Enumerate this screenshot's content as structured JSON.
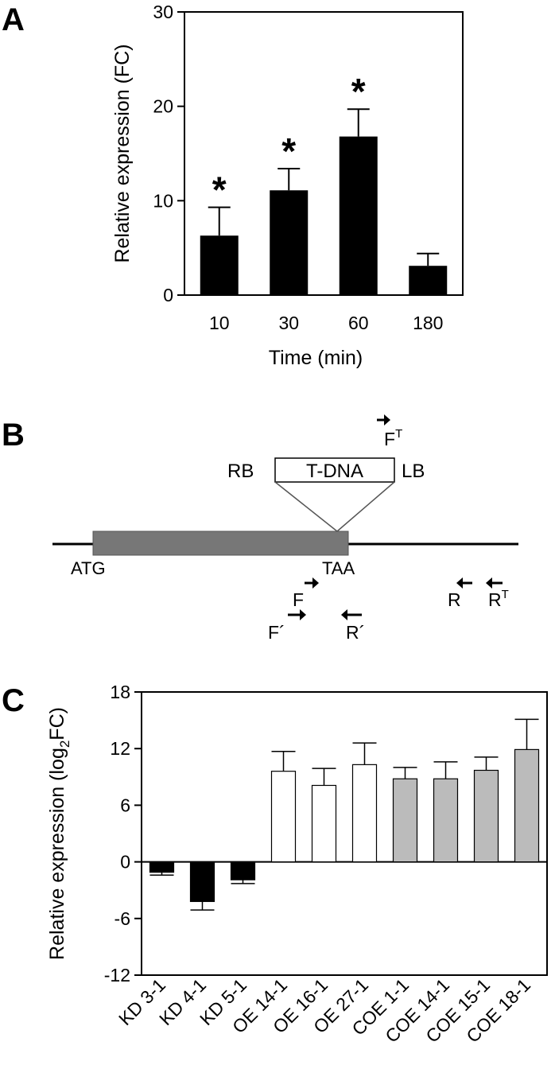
{
  "panels": {
    "a": {
      "letter": "A",
      "chart_data": {
        "type": "bar",
        "title": "",
        "categories": [
          "10",
          "30",
          "60",
          "180"
        ],
        "values": [
          6.3,
          11.1,
          16.8,
          3.1
        ],
        "errors": [
          3.0,
          2.3,
          2.9,
          1.3
        ],
        "significant": [
          true,
          true,
          true,
          false
        ],
        "significance_mark": "*",
        "xlabel": "Time (min)",
        "ylabel": "Relative expression (FC)",
        "ylim": [
          0,
          30
        ],
        "yticks": [
          "0",
          "10",
          "20",
          "30"
        ],
        "bar_color": "#000000",
        "grid": false
      }
    },
    "b": {
      "letter": "B",
      "gene_start_label": "ATG",
      "gene_end_label": "TAA",
      "insert_label": "T-DNA",
      "rb_label": "RB",
      "lb_label": "LB",
      "gene_color": "#777777",
      "primers": [
        {
          "id": "ft",
          "name": "F",
          "sup": "T",
          "direction": "right"
        },
        {
          "id": "f",
          "name": "F",
          "sup": "",
          "direction": "right"
        },
        {
          "id": "fp",
          "name": "F´",
          "sup": "",
          "direction": "right"
        },
        {
          "id": "rp",
          "name": "R´",
          "sup": "",
          "direction": "left"
        },
        {
          "id": "r",
          "name": "R",
          "sup": "",
          "direction": "left"
        },
        {
          "id": "rt",
          "name": "R",
          "sup": "T",
          "direction": "left"
        }
      ]
    },
    "c": {
      "letter": "C",
      "chart_data": {
        "type": "bar",
        "title": "",
        "categories": [
          "KD 3-1",
          "KD 4-1",
          "KD 5-1",
          "OE 14-1",
          "OE 16-1",
          "OE 27-1",
          "COE 1-1",
          "COE 14-1",
          "COE 15-1",
          "COE 18-1"
        ],
        "values": [
          -1.1,
          -4.2,
          -1.9,
          9.6,
          8.1,
          10.3,
          8.8,
          8.8,
          9.7,
          11.9
        ],
        "errors": [
          0.3,
          0.9,
          0.4,
          2.1,
          1.8,
          2.3,
          1.2,
          1.8,
          1.4,
          3.2
        ],
        "groups": [
          "KD",
          "KD",
          "KD",
          "OE",
          "OE",
          "OE",
          "COE",
          "COE",
          "COE",
          "COE"
        ],
        "group_colors": {
          "KD": "#000000",
          "OE": "#ffffff",
          "COE": "#bbbbbb"
        },
        "xlabel": "",
        "ylabel": "Relative expression (log",
        "ylabel_sub": "2",
        "ylabel_end": "FC)",
        "ylim": [
          -12,
          18
        ],
        "yticks": [
          "-12",
          "-6",
          "0",
          "6",
          "12",
          "18"
        ],
        "grid": false
      }
    }
  }
}
